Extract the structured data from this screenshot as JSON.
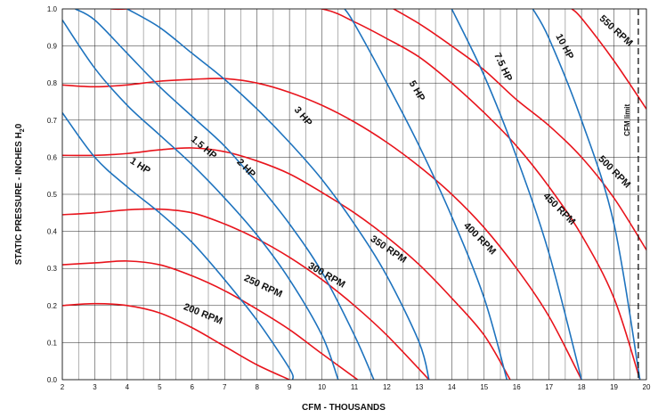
{
  "chart_data": {
    "type": "line",
    "xlabel": "CFM  - THOUSANDS",
    "ylabel_main": "STATIC PRESSURE - INCHES H",
    "ylabel_sub": "2",
    "ylabel_end": "0",
    "xlim": [
      2,
      20
    ],
    "ylim": [
      0,
      1.0
    ],
    "x_ticks": [
      "2",
      "3",
      "4",
      "5",
      "6",
      "7",
      "8",
      "9",
      "10",
      "11",
      "12",
      "13",
      "14",
      "15",
      "16",
      "17",
      "18",
      "19",
      "20"
    ],
    "y_ticks": [
      "0.0",
      "0.1",
      "0.2",
      "0.3",
      "0.4",
      "0.5",
      "0.6",
      "0.7",
      "0.8",
      "0.9",
      "1.0"
    ],
    "grid": true,
    "colors": {
      "rpm": "#e8141c",
      "hp": "#1e73be",
      "grid": "#222222",
      "limit": "#111111"
    },
    "cfm_limit": {
      "x": 19.75,
      "label": "CFM limit"
    },
    "rpm_series": [
      {
        "name": "200 RPM",
        "x": [
          2,
          3,
          4,
          5,
          6,
          7,
          8,
          9
        ],
        "y": [
          0.2,
          0.205,
          0.2,
          0.18,
          0.14,
          0.09,
          0.04,
          0.0
        ]
      },
      {
        "name": "250 RPM",
        "x": [
          2,
          3,
          4,
          5,
          6,
          7,
          8,
          9,
          10,
          11.1
        ],
        "y": [
          0.31,
          0.315,
          0.32,
          0.31,
          0.28,
          0.24,
          0.19,
          0.135,
          0.07,
          0.0
        ]
      },
      {
        "name": "300 RPM",
        "x": [
          2,
          3,
          4,
          5,
          6,
          7,
          8,
          9,
          10,
          11,
          12,
          13.3
        ],
        "y": [
          0.445,
          0.45,
          0.458,
          0.46,
          0.45,
          0.42,
          0.38,
          0.33,
          0.27,
          0.2,
          0.12,
          0.0
        ]
      },
      {
        "name": "350 RPM",
        "x": [
          2,
          3,
          4,
          5,
          6,
          7,
          8,
          9,
          10,
          11,
          12,
          13,
          14,
          15,
          15.8
        ],
        "y": [
          0.605,
          0.605,
          0.61,
          0.62,
          0.625,
          0.615,
          0.59,
          0.555,
          0.505,
          0.45,
          0.385,
          0.31,
          0.22,
          0.12,
          0.0
        ]
      },
      {
        "name": "400 RPM",
        "x": [
          2,
          3,
          4,
          5,
          6,
          7,
          8,
          9,
          10,
          11,
          12,
          13,
          14,
          15,
          16,
          17,
          18
        ],
        "y": [
          0.795,
          0.79,
          0.795,
          0.805,
          0.81,
          0.812,
          0.8,
          0.775,
          0.74,
          0.695,
          0.64,
          0.575,
          0.5,
          0.41,
          0.3,
          0.17,
          0.0
        ]
      },
      {
        "name": "450 RPM",
        "x": [
          3.5,
          4,
          6,
          8,
          10,
          11,
          12,
          13,
          14,
          15,
          16,
          17,
          18,
          19,
          19.8
        ],
        "y": [
          1.0,
          1.0,
          1.01,
          1.02,
          1.0,
          0.965,
          0.92,
          0.87,
          0.8,
          0.72,
          0.63,
          0.52,
          0.39,
          0.22,
          0.0
        ]
      },
      {
        "name": "500 RPM",
        "x": [
          11.8,
          13,
          14,
          15,
          16,
          17,
          18,
          19,
          20
        ],
        "y": [
          1.02,
          0.96,
          0.9,
          0.835,
          0.755,
          0.685,
          0.6,
          0.49,
          0.35
        ]
      },
      {
        "name": "550 RPM",
        "x": [
          17.7,
          18,
          19,
          20
        ],
        "y": [
          1.0,
          0.975,
          0.86,
          0.73
        ]
      }
    ],
    "hp_series": [
      {
        "name": "1 HP",
        "x": [
          2,
          3,
          4,
          5,
          6,
          7,
          8,
          9,
          9.1
        ],
        "y": [
          0.72,
          0.6,
          0.52,
          0.45,
          0.37,
          0.27,
          0.16,
          0.03,
          0.0
        ]
      },
      {
        "name": "1.5 HP",
        "x": [
          2,
          3,
          4,
          5,
          6,
          7,
          8,
          9,
          10,
          10.5
        ],
        "y": [
          0.97,
          0.84,
          0.74,
          0.66,
          0.58,
          0.49,
          0.39,
          0.27,
          0.12,
          0.0
        ]
      },
      {
        "name": "2 HP",
        "x": [
          2.4,
          3,
          4,
          5,
          6,
          7,
          8,
          9,
          10,
          11,
          11.6
        ],
        "y": [
          1.0,
          0.97,
          0.88,
          0.79,
          0.71,
          0.63,
          0.53,
          0.42,
          0.29,
          0.12,
          0.0
        ]
      },
      {
        "name": "3 HP",
        "x": [
          4.0,
          5,
          6,
          7,
          8,
          9,
          10,
          11,
          12,
          13,
          13.3
        ],
        "y": [
          1.0,
          0.95,
          0.88,
          0.81,
          0.73,
          0.64,
          0.54,
          0.42,
          0.28,
          0.1,
          0.0
        ]
      },
      {
        "name": "5 HP",
        "x": [
          10.7,
          11,
          12,
          13,
          14,
          15,
          15.7
        ],
        "y": [
          1.0,
          0.96,
          0.8,
          0.63,
          0.44,
          0.22,
          0.0
        ]
      },
      {
        "name": "7.5 HP",
        "x": [
          14.0,
          15,
          16,
          17,
          18
        ],
        "y": [
          1.0,
          0.82,
          0.6,
          0.34,
          0.0
        ]
      },
      {
        "name": "10 HP",
        "x": [
          16.5,
          17,
          18,
          19,
          19.8
        ],
        "y": [
          1.0,
          0.92,
          0.7,
          0.42,
          0.0
        ]
      }
    ],
    "labels": [
      {
        "text": "200 RPM",
        "x": 6.3,
        "y": 0.17,
        "angle": 22
      },
      {
        "text": "250 RPM",
        "x": 8.15,
        "y": 0.245,
        "angle": 25
      },
      {
        "text": "300 RPM",
        "x": 10.1,
        "y": 0.275,
        "angle": 30
      },
      {
        "text": "350 RPM",
        "x": 12.0,
        "y": 0.345,
        "angle": 34
      },
      {
        "text": "400 RPM",
        "x": 14.8,
        "y": 0.375,
        "angle": 45
      },
      {
        "text": "450 RPM",
        "x": 17.25,
        "y": 0.455,
        "angle": 45
      },
      {
        "text": "500 RPM",
        "x": 18.95,
        "y": 0.555,
        "angle": 45
      },
      {
        "text": "550 RPM",
        "x": 19.0,
        "y": 0.935,
        "angle": 42
      },
      {
        "text": "1 HP",
        "x": 4.35,
        "y": 0.57,
        "angle": 33
      },
      {
        "text": "1.5 HP",
        "x": 6.3,
        "y": 0.62,
        "angle": 40
      },
      {
        "text": "2 HP",
        "x": 7.6,
        "y": 0.565,
        "angle": 45
      },
      {
        "text": "3 HP",
        "x": 9.35,
        "y": 0.705,
        "angle": 50
      },
      {
        "text": "5 HP",
        "x": 12.85,
        "y": 0.775,
        "angle": 60
      },
      {
        "text": "7.5 HP",
        "x": 15.5,
        "y": 0.84,
        "angle": 65
      },
      {
        "text": "10 HP",
        "x": 17.4,
        "y": 0.895,
        "angle": 62
      }
    ]
  }
}
